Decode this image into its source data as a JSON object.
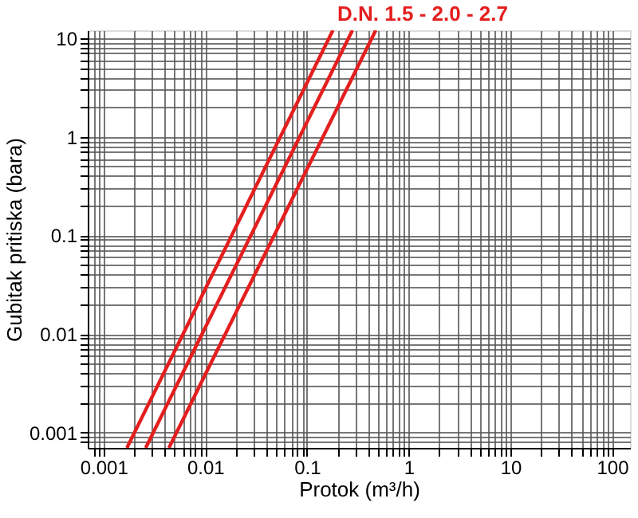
{
  "chart_data": {
    "type": "line",
    "title": "D.N. 1.5 - 2.0 - 2.7",
    "xlabel": "Protok (m³/h)",
    "ylabel": "Gubitak pritiska (bara)",
    "log": "xy",
    "grid": true,
    "legend": false,
    "marker": "none",
    "line_style": "solid",
    "xlim": [
      0.0007,
      150
    ],
    "ylim": [
      0.0007,
      12
    ],
    "xticks": [
      {
        "value": 0.0008,
        "label": null
      },
      {
        "value": 0.0009,
        "label": null
      },
      0.001,
      {
        "value": 0.002,
        "label": null
      },
      {
        "value": 0.003,
        "label": null
      },
      {
        "value": 0.004,
        "label": null
      },
      {
        "value": 0.005,
        "label": null
      },
      {
        "value": 0.006,
        "label": null
      },
      {
        "value": 0.007,
        "label": null
      },
      {
        "value": 0.008,
        "label": null
      },
      {
        "value": 0.009,
        "label": null
      },
      0.01,
      {
        "value": 0.02,
        "label": null
      },
      {
        "value": 0.03,
        "label": null
      },
      {
        "value": 0.04,
        "label": null
      },
      {
        "value": 0.05,
        "label": null
      },
      {
        "value": 0.06,
        "label": null
      },
      {
        "value": 0.07,
        "label": null
      },
      {
        "value": 0.08,
        "label": null
      },
      {
        "value": 0.09,
        "label": null
      },
      0.1,
      {
        "value": 0.2,
        "label": null
      },
      {
        "value": 0.3,
        "label": null
      },
      {
        "value": 0.4,
        "label": null
      },
      {
        "value": 0.5,
        "label": null
      },
      {
        "value": 0.6,
        "label": null
      },
      {
        "value": 0.7,
        "label": null
      },
      {
        "value": 0.8,
        "label": null
      },
      {
        "value": 0.9,
        "label": null
      },
      1,
      {
        "value": 2,
        "label": null
      },
      {
        "value": 3,
        "label": null
      },
      {
        "value": 4,
        "label": null
      },
      {
        "value": 5,
        "label": null
      },
      {
        "value": 6,
        "label": null
      },
      {
        "value": 7,
        "label": null
      },
      {
        "value": 8,
        "label": null
      },
      {
        "value": 9,
        "label": null
      },
      10,
      {
        "value": 20,
        "label": null
      },
      {
        "value": 30,
        "label": null
      },
      {
        "value": 40,
        "label": null
      },
      {
        "value": 50,
        "label": null
      },
      {
        "value": 60,
        "label": null
      },
      {
        "value": 70,
        "label": null
      },
      {
        "value": 80,
        "label": null
      },
      {
        "value": 90,
        "label": null
      },
      100
    ],
    "yticks": [
      {
        "value": 0.0008,
        "label": null
      },
      {
        "value": 0.0009,
        "label": null
      },
      0.001,
      {
        "value": 0.002,
        "label": null
      },
      {
        "value": 0.003,
        "label": null
      },
      {
        "value": 0.004,
        "label": null
      },
      {
        "value": 0.005,
        "label": null
      },
      {
        "value": 0.006,
        "label": null
      },
      {
        "value": 0.007,
        "label": null
      },
      {
        "value": 0.008,
        "label": null
      },
      {
        "value": 0.009,
        "label": null
      },
      0.01,
      {
        "value": 0.02,
        "label": null
      },
      {
        "value": 0.03,
        "label": null
      },
      {
        "value": 0.04,
        "label": null
      },
      {
        "value": 0.05,
        "label": null
      },
      {
        "value": 0.06,
        "label": null
      },
      {
        "value": 0.07,
        "label": null
      },
      {
        "value": 0.08,
        "label": null
      },
      {
        "value": 0.09,
        "label": null
      },
      0.1,
      {
        "value": 0.2,
        "label": null
      },
      {
        "value": 0.3,
        "label": null
      },
      {
        "value": 0.4,
        "label": null
      },
      {
        "value": 0.5,
        "label": null
      },
      {
        "value": 0.6,
        "label": null
      },
      {
        "value": 0.7,
        "label": null
      },
      {
        "value": 0.8,
        "label": null
      },
      {
        "value": 0.9,
        "label": null
      },
      1,
      {
        "value": 2,
        "label": null
      },
      {
        "value": 3,
        "label": null
      },
      {
        "value": 4,
        "label": null
      },
      {
        "value": 5,
        "label": null
      },
      {
        "value": 6,
        "label": null
      },
      {
        "value": 7,
        "label": null
      },
      {
        "value": 8,
        "label": null
      },
      {
        "value": 9,
        "label": null
      },
      10
    ],
    "series": [
      {
        "color": "#e41e1e",
        "x": [
          0.0017,
          0.18
        ],
        "values": [
          0.0007,
          12
        ]
      },
      {
        "color": "#e41e1e",
        "x": [
          0.0026,
          0.28
        ],
        "values": [
          0.0007,
          12
        ]
      },
      {
        "color": "#e41e1e",
        "x": [
          0.0044,
          0.475
        ],
        "values": [
          0.0007,
          12
        ]
      }
    ]
  }
}
